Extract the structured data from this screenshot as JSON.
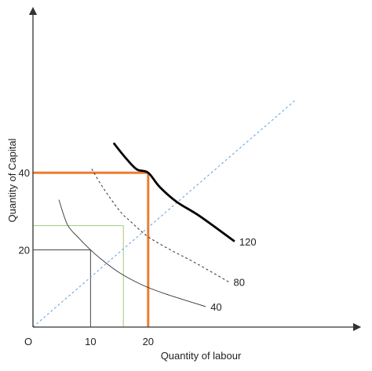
{
  "chart_data": {
    "type": "line",
    "title": "",
    "xlabel": "Quantity of labour",
    "ylabel": "Quantity of Capital",
    "origin_label": "O",
    "xlim": [
      0,
      40
    ],
    "ylim": [
      0,
      55
    ],
    "x_ticks": [
      "10",
      "20"
    ],
    "y_ticks": [
      "20",
      "40"
    ],
    "grid": false,
    "legend": "none",
    "series": [
      {
        "name": "40",
        "style": "solid-thin",
        "color": "#333333",
        "x": [
          4.5,
          6,
          8,
          10,
          12,
          15,
          19,
          23,
          30
        ],
        "y": [
          33,
          26.5,
          23,
          20,
          17.4,
          14.1,
          10.9,
          8.6,
          5.3
        ]
      },
      {
        "name": "80",
        "style": "dashed",
        "color": "#333333",
        "x": [
          10.2,
          12,
          15,
          17,
          20,
          24,
          28,
          34
        ],
        "y": [
          41,
          36.5,
          30.2,
          27.3,
          23.4,
          19.9,
          16.8,
          11.7
        ]
      },
      {
        "name": "120",
        "style": "solid-thick",
        "color": "#000000",
        "x": [
          14,
          16,
          18,
          20,
          22,
          25,
          29,
          35
        ],
        "y": [
          47.7,
          44,
          40.9,
          40,
          36.3,
          32.4,
          28.7,
          22.2
        ]
      }
    ],
    "expansion_path": {
      "style": "dotted",
      "color": "#6fa8dc",
      "x": [
        0,
        45.7
      ],
      "y": [
        0,
        59
      ]
    },
    "guides": [
      {
        "color": "#555555",
        "x": 10,
        "y": 20,
        "width": "thin"
      },
      {
        "color": "#a8d08d",
        "x": 20,
        "y": 26.3,
        "width": "thin",
        "x_at": 15.7
      },
      {
        "color": "#ed7d31",
        "x": 24.3,
        "y": 40,
        "width": "thick",
        "x_at": 20
      }
    ]
  }
}
